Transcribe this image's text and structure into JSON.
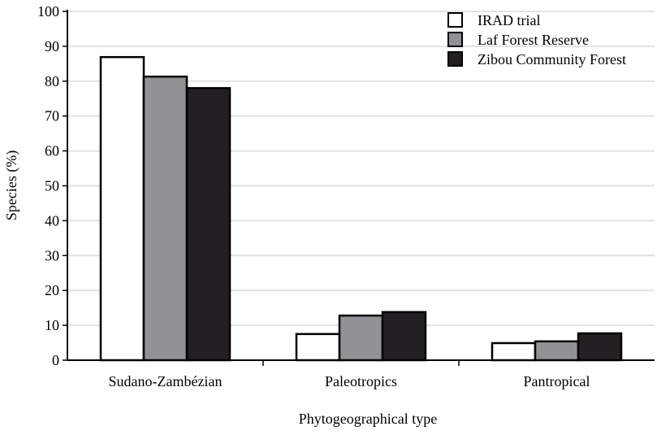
{
  "chart_data": {
    "type": "bar",
    "title": "",
    "xlabel": "Phytogeographical type",
    "ylabel": "Species (%)",
    "ylim": [
      0,
      100
    ],
    "yticks": [
      0,
      10,
      20,
      30,
      40,
      50,
      60,
      70,
      80,
      90,
      100
    ],
    "grid": true,
    "legend_position": "top-right",
    "categories": [
      "Sudano-Zambézian",
      "Paleotropics",
      "Pantropical"
    ],
    "series": [
      {
        "name": "IRAD trial",
        "color": "#ffffff",
        "values": [
          86.9,
          7.5,
          4.9
        ]
      },
      {
        "name": "Laf Forest Reserve",
        "color": "#929296",
        "values": [
          81.3,
          12.8,
          5.4
        ]
      },
      {
        "name": "Zibou Community Forest",
        "color": "#231f22",
        "values": [
          78.0,
          13.8,
          7.7
        ]
      }
    ]
  }
}
